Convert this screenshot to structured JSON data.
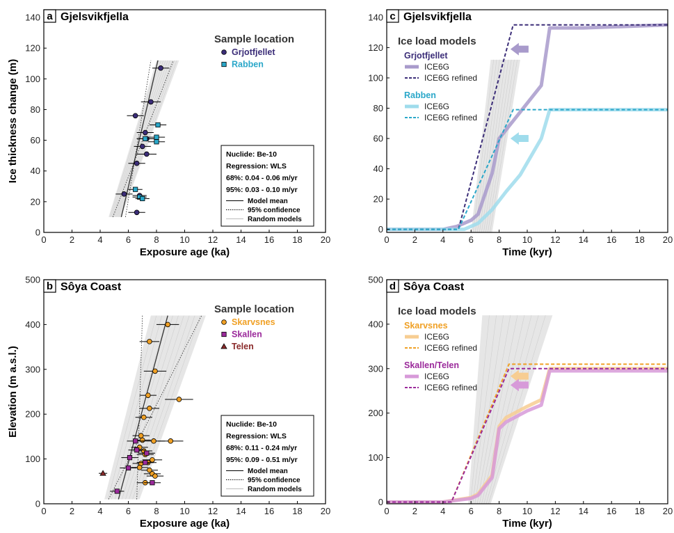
{
  "colors": {
    "grjot": "#3b2d78",
    "grjot_light": "#a89acb",
    "rabben": "#2aa7c9",
    "rabben_light": "#9fdcec",
    "skarv": "#f0a024",
    "skarv_light": "#f7cd92",
    "skallen": "#9b2a9b",
    "skallen_light": "#d79ad9",
    "telen": "#8a2a2a",
    "band": "#e2e2e2",
    "axis": "#000000"
  },
  "chart_data": [
    {
      "panel": "a",
      "type": "scatter",
      "title": "Gjelsvikfjella",
      "xlabel": "Exposure age (ka)",
      "ylabel": "Ice thickness change (m)",
      "xlim": [
        0,
        20
      ],
      "ylim": [
        0,
        145
      ],
      "xticks": [
        0,
        2,
        4,
        6,
        8,
        10,
        12,
        14,
        16,
        18,
        20
      ],
      "yticks": [
        0,
        20,
        40,
        60,
        80,
        100,
        120,
        140
      ],
      "legend_title": "Sample location",
      "series": [
        {
          "name": "Grjotfjellet",
          "marker": "circle",
          "color_key": "grjot",
          "points": [
            [
              8.3,
              107,
              0.6
            ],
            [
              7.6,
              85,
              0.7
            ],
            [
              6.5,
              76,
              0.6
            ],
            [
              7.2,
              65,
              0.6
            ],
            [
              7.3,
              61,
              0.7
            ],
            [
              7.0,
              56,
              0.6
            ],
            [
              7.3,
              51,
              0.7
            ],
            [
              6.6,
              45,
              0.6
            ],
            [
              5.7,
              25,
              0.6
            ],
            [
              6.8,
              24,
              0.5
            ],
            [
              6.6,
              13,
              0.6
            ]
          ]
        },
        {
          "name": "Rabben",
          "marker": "square",
          "color_key": "rabben",
          "points": [
            [
              8.1,
              70,
              0.6
            ],
            [
              8.0,
              62,
              0.6
            ],
            [
              7.2,
              61,
              0.6
            ],
            [
              8.0,
              59,
              0.6
            ],
            [
              6.5,
              28,
              0.5
            ],
            [
              6.8,
              23,
              0.5
            ],
            [
              7.0,
              22,
              0.5
            ]
          ]
        }
      ],
      "regression": {
        "mean": [
          [
            5.5,
            10
          ],
          [
            8.1,
            112
          ]
        ],
        "conf_upper": [
          [
            5.8,
            10
          ],
          [
            7.6,
            112
          ]
        ],
        "conf_lower": [
          [
            4.9,
            10
          ],
          [
            9.2,
            112
          ]
        ],
        "band": [
          [
            4.6,
            10
          ],
          [
            5.5,
            10
          ],
          [
            9.6,
            112
          ],
          [
            8.0,
            112
          ]
        ]
      },
      "info_box": {
        "nuclide": "Nuclide: Be-10",
        "regression": "Regression: WLS",
        "r68": "68%: 0.04 - 0.06 m/yr",
        "r95": "95%: 0.03 - 0.10 m/yr",
        "legend": [
          "Model mean",
          "95% confidence",
          "Random models"
        ]
      }
    },
    {
      "panel": "b",
      "type": "scatter",
      "title": "Sôya Coast",
      "xlabel": "Exposure age (ka)",
      "ylabel": "Elevation (m a.s.l.)",
      "xlim": [
        0,
        20
      ],
      "ylim": [
        0,
        500
      ],
      "xticks": [
        0,
        2,
        4,
        6,
        8,
        10,
        12,
        14,
        16,
        18,
        20
      ],
      "yticks": [
        0,
        100,
        200,
        300,
        400,
        500
      ],
      "legend_title": "Sample location",
      "series": [
        {
          "name": "Skarvsnes",
          "marker": "circle",
          "color_key": "skarv",
          "points": [
            [
              8.8,
              400,
              0.8
            ],
            [
              7.5,
              362,
              0.7
            ],
            [
              7.9,
              296,
              0.8
            ],
            [
              7.4,
              242,
              0.6
            ],
            [
              9.6,
              233,
              1.0
            ],
            [
              7.5,
              213,
              0.7
            ],
            [
              7.1,
              193,
              0.6
            ],
            [
              6.9,
              152,
              0.6
            ],
            [
              7.0,
              142,
              0.6
            ],
            [
              7.8,
              140,
              0.8
            ],
            [
              9.0,
              140,
              0.9
            ],
            [
              6.8,
              126,
              0.6
            ],
            [
              7.1,
              118,
              0.6
            ],
            [
              7.2,
              110,
              0.6
            ],
            [
              7.7,
              98,
              0.7
            ],
            [
              7.4,
              92,
              0.6
            ],
            [
              6.9,
              90,
              0.6
            ],
            [
              6.8,
              81,
              0.6
            ],
            [
              7.5,
              75,
              0.6
            ],
            [
              7.7,
              67,
              0.6
            ],
            [
              7.9,
              62,
              0.6
            ],
            [
              7.2,
              47,
              0.6
            ]
          ]
        },
        {
          "name": "Skallen",
          "marker": "square",
          "color_key": "skallen",
          "points": [
            [
              6.5,
              140,
              0.6
            ],
            [
              6.6,
              120,
              0.6
            ],
            [
              7.3,
              113,
              0.6
            ],
            [
              6.1,
              103,
              0.6
            ],
            [
              7.2,
              92,
              0.6
            ],
            [
              6.0,
              80,
              0.6
            ],
            [
              7.7,
              47,
              0.6
            ],
            [
              5.2,
              28,
              0.5
            ]
          ]
        },
        {
          "name": "Telen",
          "marker": "triangle",
          "color_key": "telen",
          "points": [
            [
              4.2,
              68,
              0.3
            ]
          ]
        }
      ],
      "regression": {
        "mean": [
          [
            5.3,
            10
          ],
          [
            8.8,
            420
          ]
        ],
        "conf_upper": [
          [
            6.6,
            10
          ],
          [
            7.0,
            420
          ]
        ],
        "conf_lower": [
          [
            4.6,
            10
          ],
          [
            11.2,
            420
          ]
        ],
        "band": [
          [
            4.3,
            10
          ],
          [
            6.8,
            10
          ],
          [
            11.5,
            420
          ],
          [
            7.6,
            420
          ]
        ]
      },
      "info_box": {
        "nuclide": "Nuclide: Be-10",
        "regression": "Regression: WLS",
        "r68": "68%: 0.11 - 0.24 m/yr",
        "r95": "95%: 0.09 - 0.51 m/yr",
        "legend": [
          "Model mean",
          "95% confidence",
          "Random models"
        ]
      }
    },
    {
      "panel": "c",
      "type": "line",
      "title": "Gjelsvikfjella",
      "xlabel": "Time (kyr)",
      "ylabel": "",
      "xlim": [
        0,
        20
      ],
      "ylim": [
        -2,
        145
      ],
      "xticks": [
        0,
        2,
        4,
        6,
        8,
        10,
        12,
        14,
        16,
        18,
        20
      ],
      "yticks": [
        0,
        20,
        40,
        60,
        80,
        100,
        120,
        140
      ],
      "legend_title": "Ice load models",
      "band": [
        [
          6.0,
          -2
        ],
        [
          7.5,
          -2
        ],
        [
          9.5,
          112
        ],
        [
          7.4,
          112
        ]
      ],
      "groups": [
        {
          "name": "Grjotfjellet",
          "color_key": "grjot",
          "entries": [
            "ICE6G",
            "ICE6G refined"
          ]
        },
        {
          "name": "Rabben",
          "color_key": "rabben",
          "entries": [
            "ICE6G",
            "ICE6G refined"
          ]
        }
      ],
      "series": [
        {
          "group": 0,
          "style": "thick",
          "color_key": "grjot_light",
          "x": [
            0,
            4,
            5,
            6,
            6.5,
            7.5,
            8,
            11,
            11.6,
            14,
            20
          ],
          "y": [
            0,
            0,
            2,
            6,
            10,
            37,
            60,
            95,
            133,
            133,
            135
          ]
        },
        {
          "group": 0,
          "style": "dashed",
          "color_key": "grjot",
          "x": [
            0,
            5.1,
            9,
            20
          ],
          "y": [
            0,
            0,
            135,
            135
          ]
        },
        {
          "group": 1,
          "style": "thick",
          "color_key": "rabben_light",
          "x": [
            0,
            5.5,
            6.5,
            7.5,
            8.5,
            9.5,
            11,
            11.6,
            20
          ],
          "y": [
            0,
            0,
            4,
            13,
            25,
            36,
            60,
            79,
            79
          ]
        },
        {
          "group": 1,
          "style": "dashed",
          "color_key": "rabben",
          "x": [
            0,
            5.1,
            9,
            20
          ],
          "y": [
            0,
            0,
            79,
            79
          ]
        }
      ],
      "arrows": [
        {
          "x": 9.4,
          "y": 119,
          "color_key": "grjot_light"
        },
        {
          "x": 9.4,
          "y": 60,
          "color_key": "rabben_light"
        }
      ]
    },
    {
      "panel": "d",
      "type": "line",
      "title": "Sôya Coast",
      "xlabel": "Time (kyr)",
      "ylabel": "",
      "xlim": [
        0,
        20
      ],
      "ylim": [
        -4,
        500
      ],
      "xticks": [
        0,
        2,
        4,
        6,
        8,
        10,
        12,
        14,
        16,
        18,
        20
      ],
      "yticks": [
        0,
        100,
        200,
        300,
        400,
        500
      ],
      "legend_title": "Ice load models",
      "band": [
        [
          5.8,
          -4
        ],
        [
          7.4,
          -4
        ],
        [
          11.8,
          420
        ],
        [
          6.8,
          420
        ]
      ],
      "groups": [
        {
          "name": "Skarvsnes",
          "color_key": "skarv",
          "entries": [
            "ICE6G",
            "ICE6G refined"
          ]
        },
        {
          "name": "Skallen/Telen",
          "color_key": "skallen",
          "entries": [
            "ICE6G",
            "ICE6G refined"
          ]
        }
      ],
      "series": [
        {
          "group": 0,
          "style": "thick",
          "color_key": "skarv_light",
          "x": [
            0,
            4,
            6,
            6.5,
            7.5,
            8,
            8.5,
            10,
            11,
            11.6,
            20
          ],
          "y": [
            0,
            0,
            10,
            18,
            60,
            170,
            190,
            215,
            230,
            300,
            300
          ]
        },
        {
          "group": 0,
          "style": "dashed",
          "color_key": "skarv",
          "x": [
            0,
            4.6,
            8.7,
            20
          ],
          "y": [
            0,
            0,
            310,
            310
          ]
        },
        {
          "group": 1,
          "style": "thick",
          "color_key": "skallen_light",
          "x": [
            0,
            4,
            6,
            6.5,
            7.5,
            8,
            8.5,
            10,
            11,
            11.6,
            20
          ],
          "y": [
            0,
            0,
            8,
            15,
            55,
            165,
            180,
            205,
            218,
            295,
            295
          ]
        },
        {
          "group": 1,
          "style": "dashed",
          "color_key": "skallen",
          "x": [
            0,
            4.6,
            8.7,
            20
          ],
          "y": [
            0,
            0,
            300,
            300
          ]
        }
      ],
      "arrows": [
        {
          "x": 9.4,
          "y": 283,
          "color_key": "skarv_light"
        },
        {
          "x": 9.4,
          "y": 263,
          "color_key": "skallen_light"
        }
      ]
    }
  ]
}
